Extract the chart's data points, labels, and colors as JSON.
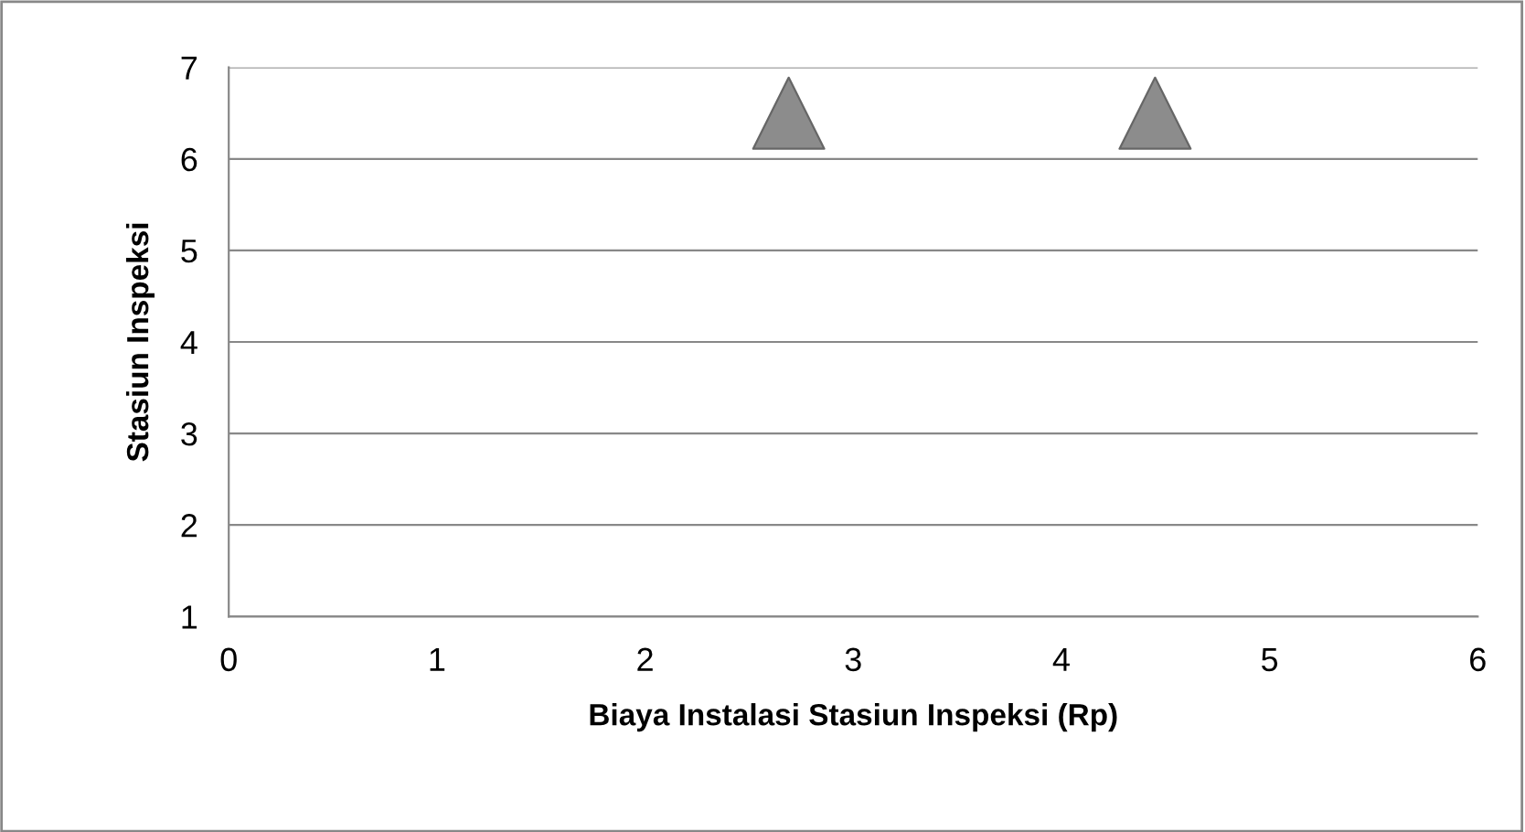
{
  "chart_data": {
    "type": "scatter",
    "xlabel": "Biaya Instalasi Stasiun Inspeksi (Rp)",
    "ylabel": "Stasiun Inspeksi",
    "x": [
      2.69,
      4.45
    ],
    "values": [
      6.5,
      6.5
    ],
    "color": "#8c8c8c",
    "marker": "triangle",
    "xlim": [
      0,
      6
    ],
    "xticks": [
      0,
      1,
      2,
      3,
      4,
      5,
      6
    ],
    "ylim": [
      1,
      7
    ],
    "yticks": [
      1,
      2,
      3,
      4,
      5,
      6,
      7
    ],
    "grid": "y",
    "legend": false
  }
}
